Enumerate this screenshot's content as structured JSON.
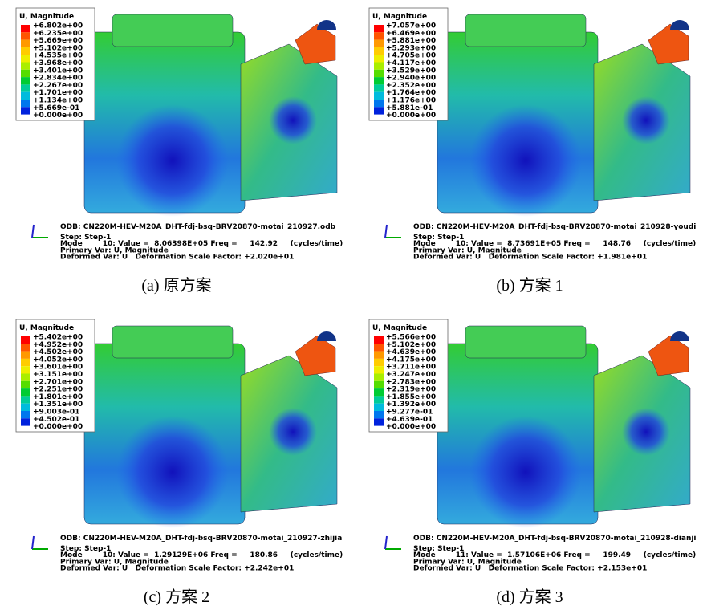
{
  "panels": [
    {
      "legend_title": "U, Magnitude",
      "legend_labels": [
        "+6.802e+00",
        "+6.235e+00",
        "+5.669e+00",
        "+5.102e+00",
        "+4.535e+00",
        "+3.968e+00",
        "+3.401e+00",
        "+2.834e+00",
        "+2.267e+00",
        "+1.701e+00",
        "+1.134e+00",
        "+5.669e-01",
        "+0.000e+00"
      ],
      "odb": "ODB: CN220M-HEV-M20A_DHT-fdj-bsq-BRV20870-motai_210927.odb",
      "step": "Step: Step-1",
      "mode": "Mode        10: Value =  8.06398E+05 Freq =     142.92     (cycles/time)",
      "primary": "Primary Var: U, Magnitude",
      "deformed": "Deformed Var: U   Deformation Scale Factor: +2.020e+01",
      "caption": "(a)  原方案"
    },
    {
      "legend_title": "U, Magnitude",
      "legend_labels": [
        "+7.057e+00",
        "+6.469e+00",
        "+5.881e+00",
        "+5.293e+00",
        "+4.705e+00",
        "+4.117e+00",
        "+3.529e+00",
        "+2.940e+00",
        "+2.352e+00",
        "+1.764e+00",
        "+1.176e+00",
        "+5.881e-01",
        "+0.000e+00"
      ],
      "odb": "ODB: CN220M-HEV-M20A_DHT-fdj-bsq-BRV20870-motai_210928-youdi",
      "step": "Step: Step-1",
      "mode": "Mode        10: Value =  8.73691E+05 Freq =     148.76     (cycles/time)",
      "primary": "Primary Var: U, Magnitude",
      "deformed": "Deformed Var: U   Deformation Scale Factor: +1.981e+01",
      "caption": "(b)  方案 1"
    },
    {
      "legend_title": "U, Magnitude",
      "legend_labels": [
        "+5.402e+00",
        "+4.952e+00",
        "+4.502e+00",
        "+4.052e+00",
        "+3.601e+00",
        "+3.151e+00",
        "+2.701e+00",
        "+2.251e+00",
        "+1.801e+00",
        "+1.351e+00",
        "+9.003e-01",
        "+4.502e-01",
        "+0.000e+00"
      ],
      "odb": "ODB: CN220M-HEV-M20A_DHT-fdj-bsq-BRV20870-motai_210927-zhijia",
      "step": "Step: Step-1",
      "mode": "Mode        10: Value =  1.29129E+06 Freq =     180.86     (cycles/time)",
      "primary": "Primary Var: U, Magnitude",
      "deformed": "Deformed Var: U   Deformation Scale Factor: +2.242e+01",
      "caption": "(c)  方案 2"
    },
    {
      "legend_title": "U, Magnitude",
      "legend_labels": [
        "+5.566e+00",
        "+5.102e+00",
        "+4.639e+00",
        "+4.175e+00",
        "+3.711e+00",
        "+3.247e+00",
        "+2.783e+00",
        "+2.319e+00",
        "+1.855e+00",
        "+1.392e+00",
        "+9.277e-01",
        "+4.639e-01",
        "+0.000e+00"
      ],
      "odb": "ODB: CN220M-HEV-M20A_DHT-fdj-bsq-BRV20870-motai_210928-dianji",
      "step": "Step: Step-1",
      "mode": "Mode        11: Value =  1.57106E+06 Freq =     199.49     (cycles/time)",
      "primary": "Primary Var: U, Magnitude",
      "deformed": "Deformed Var: U   Deformation Scale Factor: +2.153e+01",
      "caption": "(d)  方案 3"
    }
  ]
}
